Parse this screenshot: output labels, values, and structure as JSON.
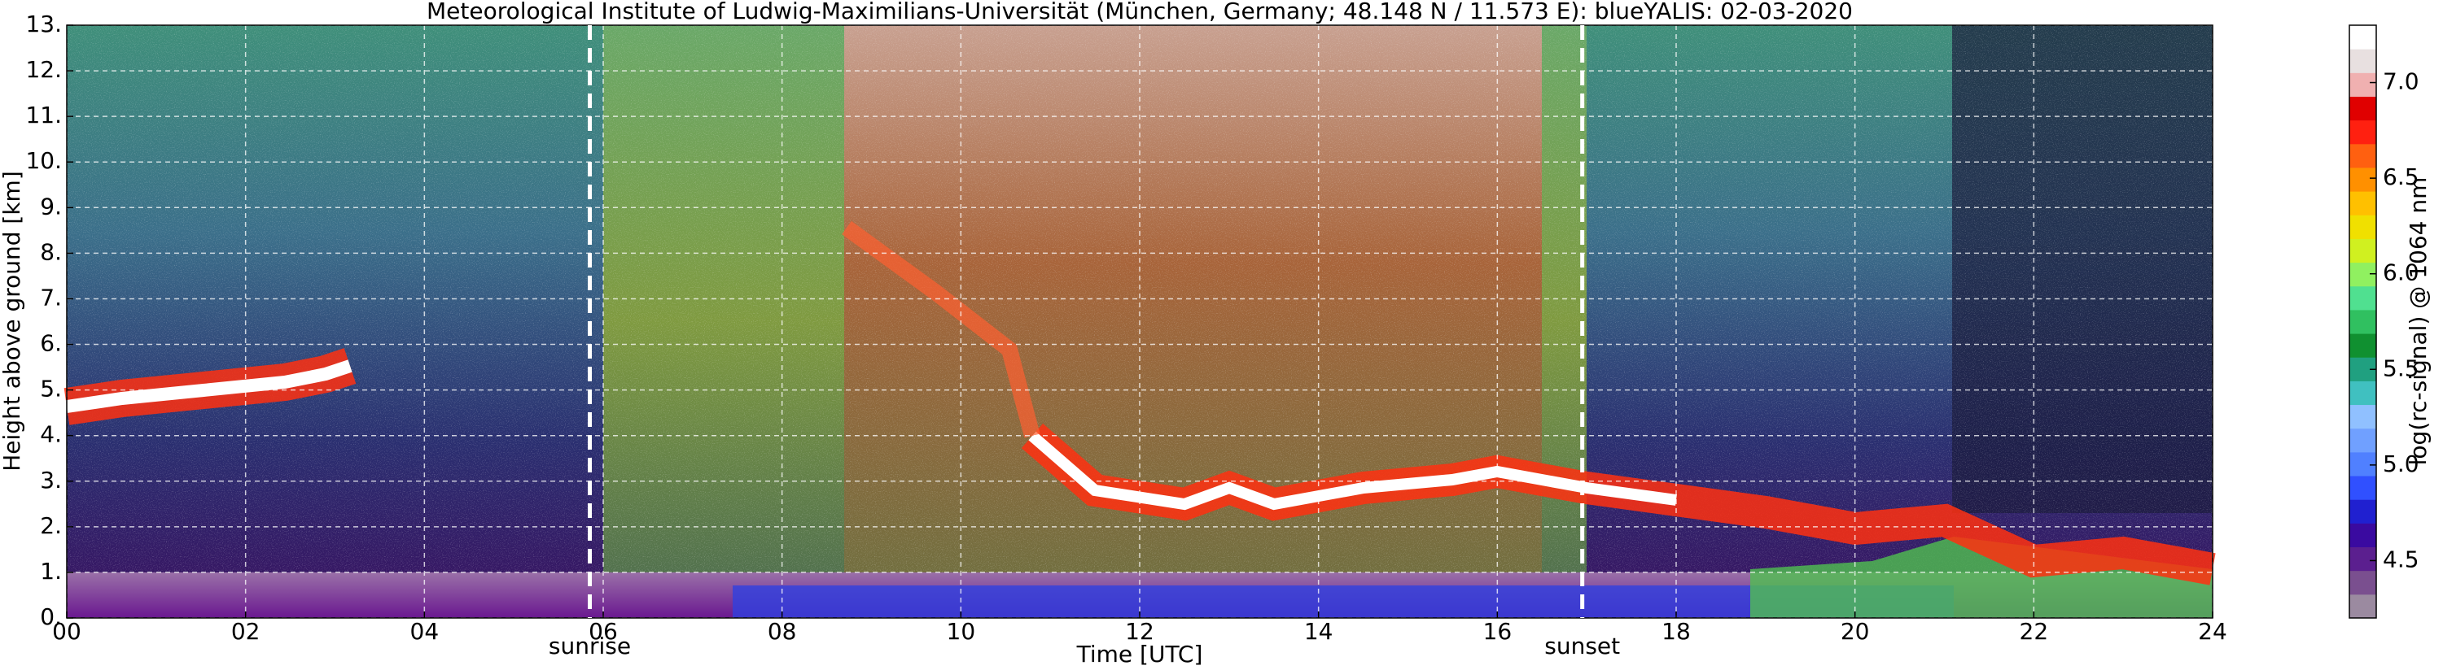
{
  "chart_data": {
    "type": "heatmap",
    "title": "Meteorological Institute of Ludwig-Maximilians-Universität (München, Germany; 48.148 N / 11.573 E):    blueYALIS: 02-03-2020",
    "xlabel": "Time [UTC]",
    "ylabel": "Height above ground [km]",
    "xlim": [
      0,
      24
    ],
    "xticks": [
      {
        "value": 0,
        "label": "00"
      },
      {
        "value": 2,
        "label": "02"
      },
      {
        "value": 4,
        "label": "04"
      },
      {
        "value": 6,
        "label": "06"
      },
      {
        "value": 8,
        "label": "08"
      },
      10,
      12,
      14,
      16,
      18,
      20,
      22,
      24
    ],
    "ylim": [
      0,
      13
    ],
    "yticks": [
      {
        "value": 0,
        "label": "0."
      },
      {
        "value": 1,
        "label": "1."
      },
      {
        "value": 2,
        "label": "2."
      },
      {
        "value": 3,
        "label": "3."
      },
      {
        "value": 4,
        "label": "4."
      },
      {
        "value": 5,
        "label": "5."
      },
      {
        "value": 6,
        "label": "6."
      },
      {
        "value": 7,
        "label": "7."
      },
      {
        "value": 8,
        "label": "8."
      },
      {
        "value": 9,
        "label": "9."
      },
      {
        "value": 10,
        "label": "10."
      },
      {
        "value": 11,
        "label": "11."
      },
      {
        "value": 12,
        "label": "12."
      },
      {
        "value": 13,
        "label": "13."
      }
    ],
    "grid": true,
    "annotations": [
      {
        "x": 5.85,
        "label": "sunrise"
      },
      {
        "x": 16.95,
        "label": "sunset"
      }
    ],
    "colorbar": {
      "label": "log(rc-signal) @ 1064 nm",
      "lim": [
        4.2,
        7.3
      ],
      "ticks": [
        4.5,
        {
          "value": 5.0,
          "label": "5.0"
        },
        5.5,
        {
          "value": 6.0,
          "label": "6.0"
        },
        6.5,
        {
          "value": 7.0,
          "label": "7.0"
        }
      ],
      "colormap": [
        "#9b8aa0",
        "#7a4f8f",
        "#5b1f8f",
        "#3a0aa0",
        "#2020d0",
        "#3050ff",
        "#5080ff",
        "#70a0ff",
        "#90c0ff",
        "#40c0c0",
        "#20a080",
        "#109030",
        "#30c060",
        "#50e090",
        "#90f060",
        "#d0f020",
        "#f0e000",
        "#ffc000",
        "#ff9000",
        "#ff6010",
        "#ff2010",
        "#e00000",
        "#f0b0b0",
        "#e8e0e0",
        "#ffffff"
      ]
    }
  }
}
